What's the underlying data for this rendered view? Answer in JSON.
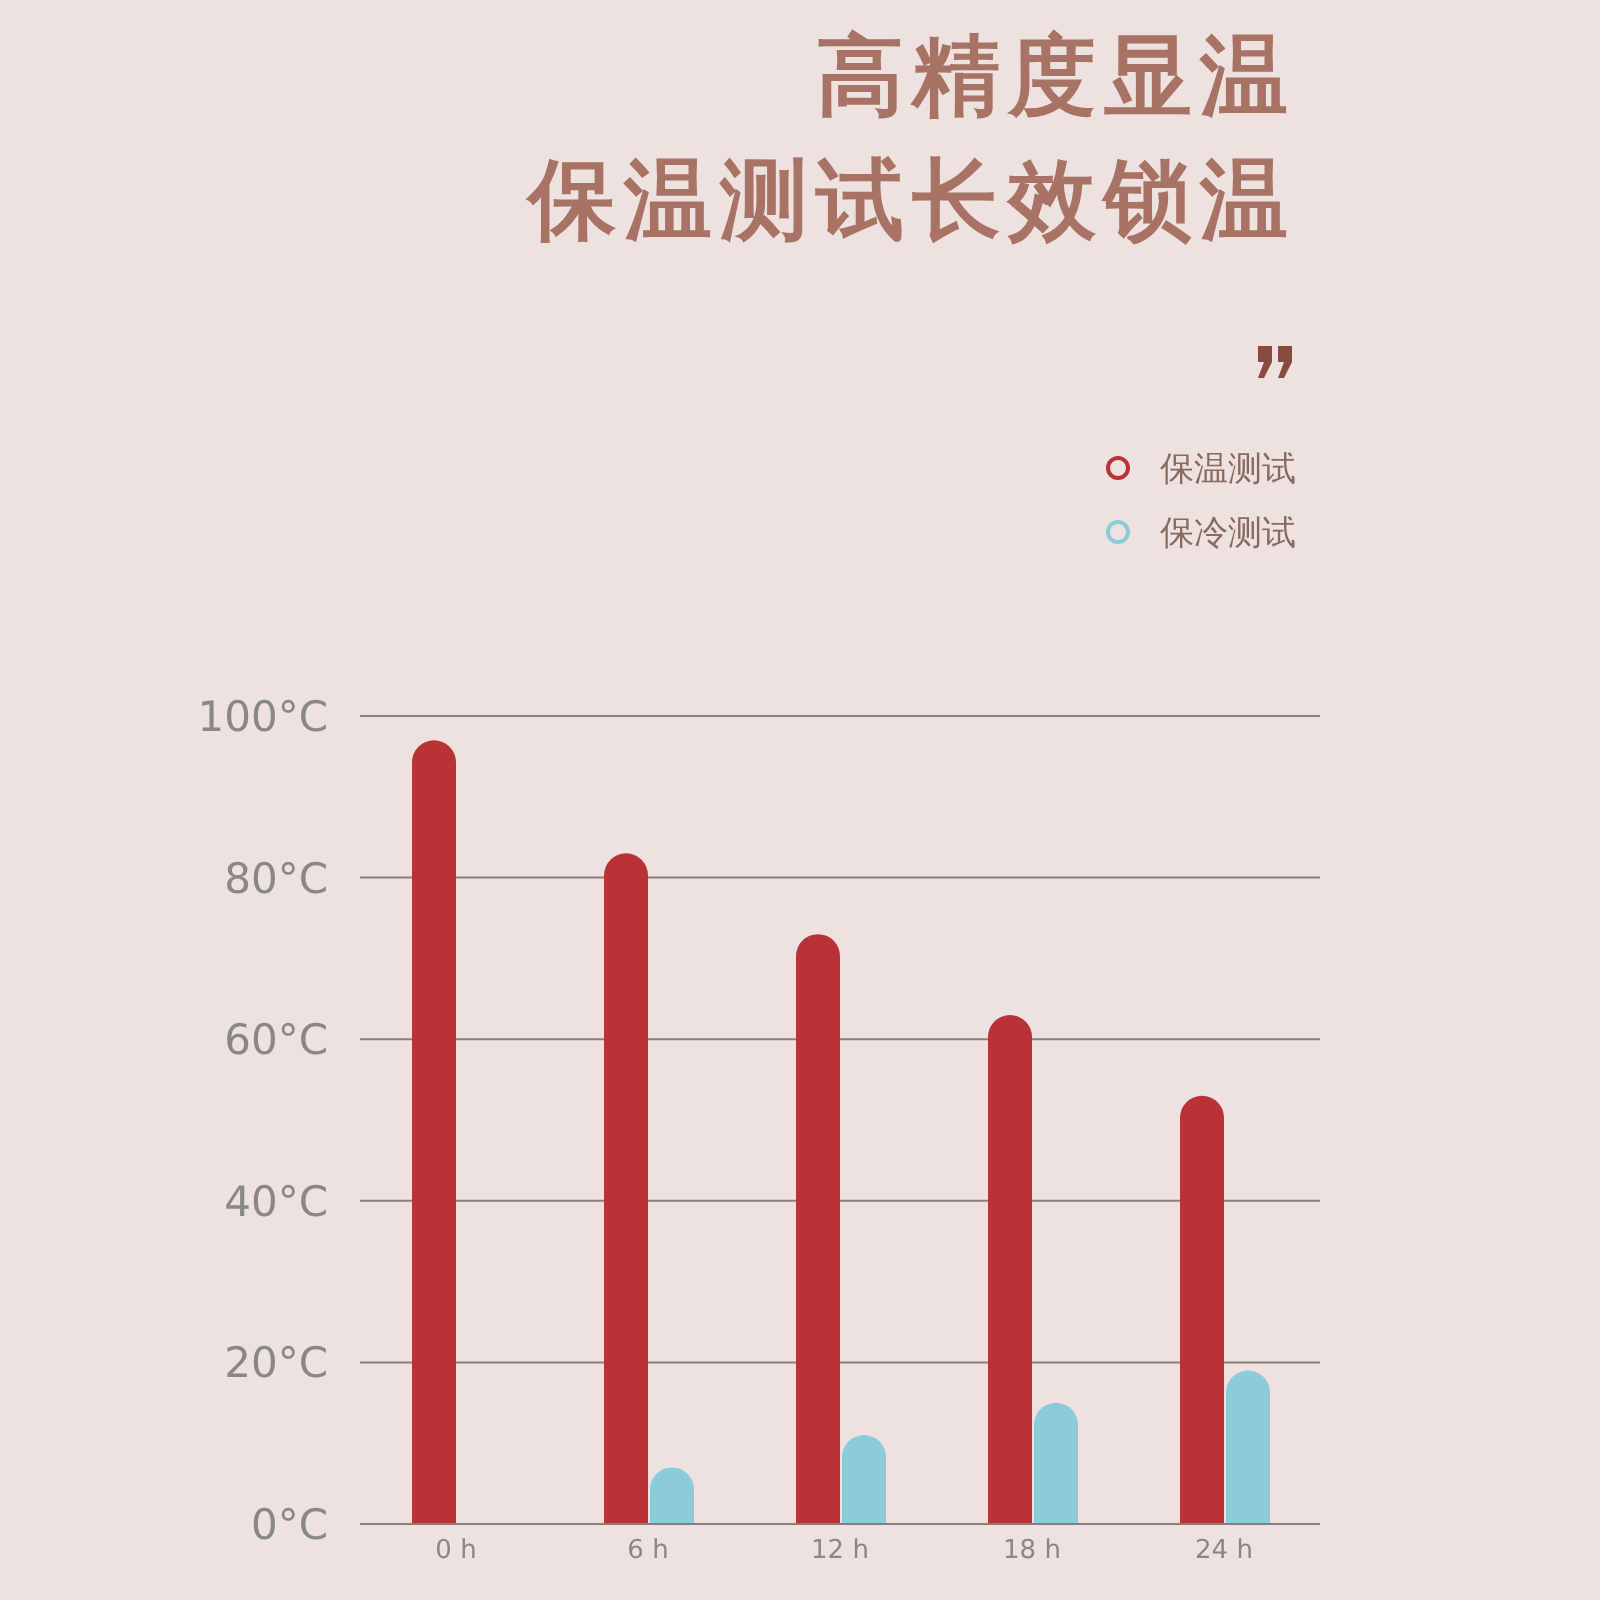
{
  "chart_data": {
    "type": "bar",
    "title": "高精度显温",
    "subtitle": "保温测试长效锁温",
    "categories": [
      "0 h",
      "6 h",
      "12 h",
      "18 h",
      "24 h"
    ],
    "series": [
      {
        "name": "保温测试",
        "color": "#b83236",
        "values": [
          97,
          83,
          73,
          63,
          53
        ]
      },
      {
        "name": "保冷测试",
        "color": "#8ccbd8",
        "values": [
          null,
          7,
          11,
          15,
          19
        ]
      }
    ],
    "ylim": [
      0,
      100
    ],
    "yticks": [
      {
        "value": 0,
        "label": "0°C"
      },
      {
        "value": 20,
        "label": "20°C"
      },
      {
        "value": 40,
        "label": "40°C"
      },
      {
        "value": 60,
        "label": "60°C"
      },
      {
        "value": 80,
        "label": "80°C"
      },
      {
        "value": 100,
        "label": "100°C"
      }
    ],
    "grid": "y",
    "legend": "top right"
  }
}
